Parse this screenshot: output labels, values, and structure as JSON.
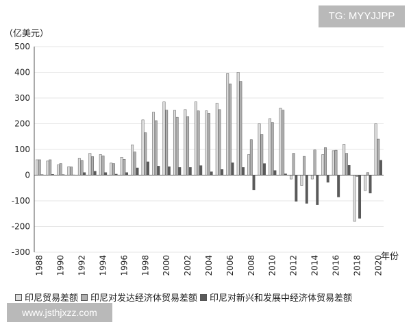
{
  "watermarks": {
    "top": "TG: MYYJJPP",
    "bottom": "www.jsthjxzz.com"
  },
  "colors": {
    "s1": "#dcdcdc",
    "s2": "#b0b0b0",
    "s3": "#5a5a5a",
    "axis": "#555555"
  },
  "chart_data": {
    "type": "bar",
    "ylabel": "（亿美元）",
    "xlabel": "年份",
    "ylim": [
      -300,
      500
    ],
    "yticks": [
      500,
      400,
      300,
      200,
      100,
      0,
      -100,
      -200,
      -300
    ],
    "xtick_labels": [
      "1988",
      "1990",
      "1992",
      "1994",
      "1996",
      "1998",
      "2000",
      "2002",
      "2004",
      "2006",
      "2008",
      "2010",
      "2012",
      "2014",
      "2016",
      "2018",
      "2020"
    ],
    "categories": [
      "1988",
      "1989",
      "1990",
      "1991",
      "1992",
      "1993",
      "1994",
      "1995",
      "1996",
      "1997",
      "1998",
      "1999",
      "2000",
      "2001",
      "2002",
      "2003",
      "2004",
      "2005",
      "2006",
      "2007",
      "2008",
      "2009",
      "2010",
      "2011",
      "2012",
      "2013",
      "2014",
      "2015",
      "2016",
      "2017",
      "2018",
      "2019",
      "2020"
    ],
    "series": [
      {
        "name": "印尼贸易差额",
        "color": "#dcdcdc",
        "values": [
          60,
          55,
          40,
          33,
          65,
          85,
          80,
          47,
          70,
          118,
          215,
          245,
          285,
          252,
          255,
          285,
          250,
          280,
          395,
          400,
          80,
          200,
          220,
          260,
          -15,
          -40,
          -15,
          80,
          95,
          120,
          -180,
          -60,
          200
        ]
      },
      {
        "name": "印尼对发达经济体贸易差额",
        "color": "#b0b0b0",
        "values": [
          60,
          60,
          45,
          32,
          57,
          72,
          75,
          45,
          62,
          90,
          165,
          212,
          253,
          225,
          228,
          250,
          240,
          255,
          355,
          365,
          138,
          158,
          205,
          253,
          85,
          73,
          98,
          107,
          97,
          85,
          -5,
          10,
          140
        ]
      },
      {
        "name": "印尼对新兴和发展中经济体贸易差额",
        "color": "#5a5a5a",
        "values": [
          2,
          3,
          2,
          1,
          10,
          15,
          10,
          4,
          10,
          28,
          52,
          35,
          33,
          30,
          30,
          37,
          13,
          22,
          48,
          30,
          -57,
          45,
          18,
          5,
          -102,
          -110,
          -115,
          -28,
          -85,
          38,
          -168,
          -70,
          58
        ]
      }
    ]
  }
}
